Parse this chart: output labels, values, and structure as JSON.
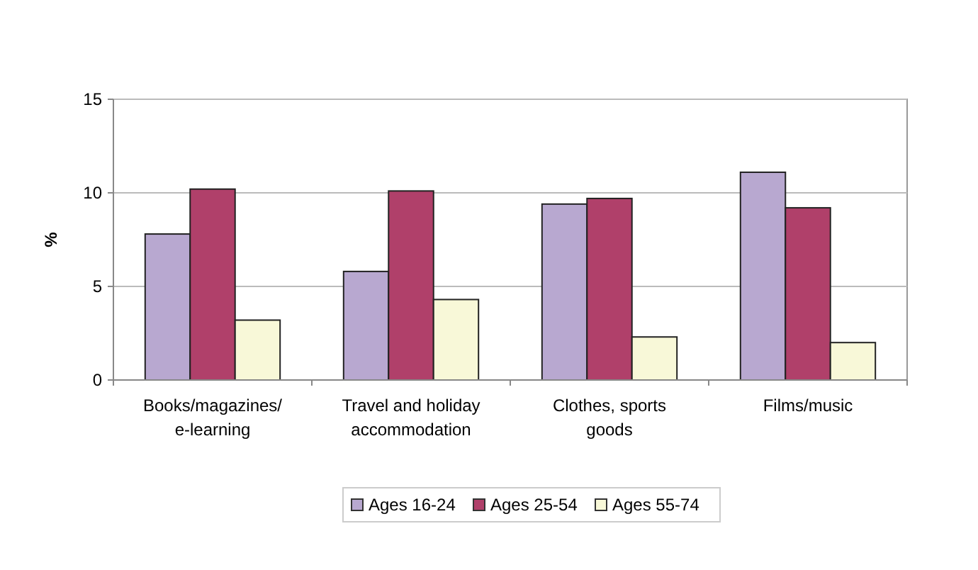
{
  "chart_data": {
    "type": "bar",
    "ylabel": "%",
    "categories": [
      "Books/magazines/\ne-learning",
      "Travel and holiday\naccommodation",
      "Clothes, sports\ngoods",
      "Films/music"
    ],
    "series": [
      {
        "name": "Ages 16-24",
        "color": "#b8a8d0",
        "values": [
          7.8,
          5.8,
          9.4,
          11.1
        ]
      },
      {
        "name": "Ages 25-54",
        "color": "#b0406a",
        "values": [
          10.2,
          10.1,
          9.7,
          9.2
        ]
      },
      {
        "name": "Ages 55-74",
        "color": "#f8f8d8",
        "values": [
          3.2,
          4.3,
          2.3,
          2.0
        ]
      }
    ],
    "ylim": [
      0,
      15
    ],
    "yticks": [
      0,
      5,
      10,
      15
    ],
    "grid": "y",
    "legend": "bottom"
  }
}
